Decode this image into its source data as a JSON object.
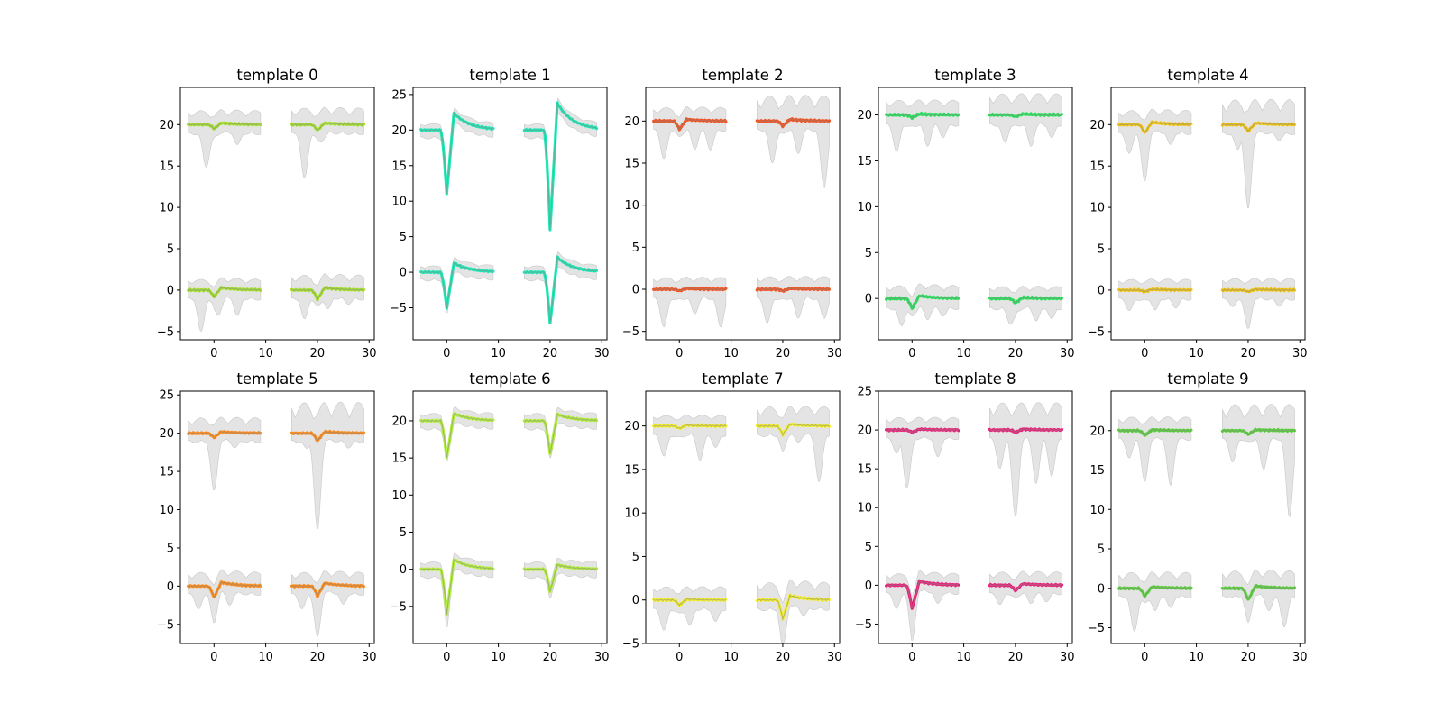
{
  "chart_data": [
    {
      "type": "line",
      "title": "template 0",
      "color": "#a6e22e",
      "ylim": [
        -6,
        24.5
      ],
      "yticks": [
        -5,
        0,
        5,
        10,
        15,
        20
      ],
      "channels": [
        {
          "x_offset": 0,
          "y_offset": 20,
          "amp": -0.5,
          "tail": 0.2,
          "band_top": 1.7,
          "band_dips": [
            [
              -1.5,
              -5.2
            ],
            [
              4.5,
              -2.5
            ]
          ]
        },
        {
          "x_offset": 20,
          "y_offset": 20,
          "amp": -0.7,
          "tail": 0.2,
          "band_top": 2.0,
          "band_dips": [
            [
              -2.5,
              -6.5
            ],
            [
              1,
              -2.0
            ]
          ]
        },
        {
          "x_offset": 0,
          "y_offset": 0,
          "amp": -0.8,
          "tail": 0.3,
          "band_top": 1.3,
          "band_dips": [
            [
              -2.5,
              -5.0
            ],
            [
              1,
              -3.0
            ],
            [
              4.5,
              -3.2
            ]
          ]
        },
        {
          "x_offset": 20,
          "y_offset": 0,
          "amp": -1.1,
          "tail": 0.3,
          "band_top": 1.8,
          "band_dips": [
            [
              -2.5,
              -3.5
            ],
            [
              2,
              -2.5
            ],
            [
              6,
              -1.8
            ]
          ]
        }
      ],
      "xlim": [
        -6.5,
        31
      ],
      "xticks": [
        0,
        10,
        20,
        30
      ]
    },
    {
      "type": "line",
      "title": "template 1",
      "color": "#1de9b6",
      "ylim": [
        -9.5,
        26
      ],
      "yticks": [
        -5,
        0,
        5,
        10,
        15,
        20,
        25
      ],
      "channels": [
        {
          "x_offset": 0,
          "y_offset": 20,
          "amp": -9.0,
          "tail": 2.4,
          "band_top": 0.9,
          "band_dips": [
            [
              0,
              -0.8
            ]
          ]
        },
        {
          "x_offset": 20,
          "y_offset": 20,
          "amp": -14.0,
          "tail": 3.8,
          "band_top": 0.9,
          "band_dips": [
            [
              0,
              -0.8
            ]
          ]
        },
        {
          "x_offset": 0,
          "y_offset": 0,
          "amp": -5.0,
          "tail": 1.3,
          "band_top": 0.9,
          "band_dips": [
            [
              0,
              -1.3
            ]
          ]
        },
        {
          "x_offset": 20,
          "y_offset": 0,
          "amp": -7.2,
          "tail": 2.1,
          "band_top": 0.9,
          "band_dips": [
            [
              0,
              -1.0
            ]
          ]
        }
      ],
      "xlim": [
        -6.5,
        31
      ],
      "xticks": [
        0,
        10,
        20,
        30
      ]
    },
    {
      "type": "line",
      "title": "template 2",
      "color": "#f4511e",
      "ylim": [
        -6,
        24
      ],
      "yticks": [
        -5,
        0,
        5,
        10,
        15,
        20
      ],
      "channels": [
        {
          "x_offset": 0,
          "y_offset": 20,
          "amp": -1.0,
          "tail": 0.2,
          "band_top": 1.6,
          "band_dips": [
            [
              -3,
              -4.5
            ],
            [
              3,
              -3.5
            ],
            [
              6,
              -3.5
            ]
          ]
        },
        {
          "x_offset": 20,
          "y_offset": 20,
          "amp": -0.6,
          "tail": 0.2,
          "band_top": 3.0,
          "band_dips": [
            [
              -2,
              -5.0
            ],
            [
              3,
              -4.0
            ],
            [
              8,
              -8.0
            ]
          ]
        },
        {
          "x_offset": 0,
          "y_offset": 0,
          "amp": -0.2,
          "tail": 0.1,
          "band_top": 1.4,
          "band_dips": [
            [
              -3,
              -4.5
            ],
            [
              3,
              -3.0
            ],
            [
              8,
              -4.5
            ]
          ]
        },
        {
          "x_offset": 20,
          "y_offset": 0,
          "amp": -0.2,
          "tail": 0.1,
          "band_top": 1.5,
          "band_dips": [
            [
              -3,
              -4.0
            ],
            [
              3,
              -3.5
            ],
            [
              8,
              -3.5
            ]
          ]
        }
      ],
      "xlim": [
        -6.5,
        31
      ],
      "xticks": [
        0,
        10,
        20,
        30
      ]
    },
    {
      "type": "line",
      "title": "template 3",
      "color": "#26e35a",
      "ylim": [
        -4.5,
        23
      ],
      "yticks": [
        0,
        5,
        10,
        15,
        20
      ],
      "channels": [
        {
          "x_offset": 0,
          "y_offset": 20,
          "amp": -0.3,
          "tail": 0.1,
          "band_top": 1.6,
          "band_dips": [
            [
              -3,
              -4.0
            ],
            [
              3,
              -3.5
            ],
            [
              6,
              -2.5
            ]
          ]
        },
        {
          "x_offset": 20,
          "y_offset": 20,
          "amp": -0.2,
          "tail": 0.1,
          "band_top": 2.3,
          "band_dips": [
            [
              -2,
              -3.0
            ],
            [
              3,
              -3.5
            ],
            [
              7,
              -2.5
            ]
          ]
        },
        {
          "x_offset": 0,
          "y_offset": 0,
          "amp": -1.1,
          "tail": 0.3,
          "band_top": 1.4,
          "band_dips": [
            [
              -2,
              -3.0
            ],
            [
              3,
              -2.5
            ],
            [
              6,
              -2.0
            ]
          ]
        },
        {
          "x_offset": 20,
          "y_offset": 0,
          "amp": -0.5,
          "tail": 0.1,
          "band_top": 1.3,
          "band_dips": [
            [
              -1,
              -2.8
            ],
            [
              4,
              -2.5
            ],
            [
              7,
              -2.2
            ]
          ]
        }
      ],
      "xlim": [
        -6.5,
        31
      ],
      "xticks": [
        0,
        10,
        20,
        30
      ]
    },
    {
      "type": "line",
      "title": "template 4",
      "color": "#f2c611",
      "ylim": [
        -6,
        24.5
      ],
      "yticks": [
        -5,
        0,
        5,
        10,
        15,
        20
      ],
      "channels": [
        {
          "x_offset": 0,
          "y_offset": 20,
          "amp": -1.0,
          "tail": 0.3,
          "band_top": 1.7,
          "band_dips": [
            [
              -3,
              -3.5
            ],
            [
              0,
              -6.0
            ],
            [
              5,
              -2.5
            ]
          ]
        },
        {
          "x_offset": 20,
          "y_offset": 20,
          "amp": -0.8,
          "tail": 0.2,
          "band_top": 3.0,
          "band_dips": [
            [
              -2,
              -3.0
            ],
            [
              0,
              -9.5
            ],
            [
              6,
              -2.0
            ]
          ]
        },
        {
          "x_offset": 0,
          "y_offset": 0,
          "amp": -0.2,
          "tail": 0.1,
          "band_top": 1.3,
          "band_dips": [
            [
              -3,
              -2.5
            ],
            [
              2,
              -2.5
            ],
            [
              6,
              -2.2
            ]
          ]
        },
        {
          "x_offset": 20,
          "y_offset": 0,
          "amp": -0.2,
          "tail": 0.1,
          "band_top": 1.4,
          "band_dips": [
            [
              -3,
              -2.0
            ],
            [
              0,
              -4.5
            ],
            [
              6,
              -2.0
            ]
          ]
        }
      ],
      "xlim": [
        -6.5,
        31
      ],
      "xticks": [
        0,
        10,
        20,
        30
      ]
    },
    {
      "type": "line",
      "title": "template 5",
      "color": "#ff8c1a",
      "ylim": [
        -7.5,
        25.5
      ],
      "yticks": [
        -5,
        0,
        5,
        10,
        15,
        20,
        25
      ],
      "channels": [
        {
          "x_offset": 0,
          "y_offset": 20,
          "amp": -0.6,
          "tail": 0.2,
          "band_top": 2.0,
          "band_dips": [
            [
              0,
              -7.0
            ],
            [
              4,
              -2.0
            ]
          ]
        },
        {
          "x_offset": 20,
          "y_offset": 20,
          "amp": -1.0,
          "tail": 0.2,
          "band_top": 4.0,
          "band_dips": [
            [
              -2,
              -2.0
            ],
            [
              0,
              -11.8
            ],
            [
              6,
              -2.0
            ]
          ]
        },
        {
          "x_offset": 0,
          "y_offset": 0,
          "amp": -1.5,
          "tail": 0.5,
          "band_top": 1.8,
          "band_dips": [
            [
              -3,
              -3.0
            ],
            [
              0,
              -3.5
            ],
            [
              3,
              -2.8
            ]
          ]
        },
        {
          "x_offset": 20,
          "y_offset": 0,
          "amp": -1.3,
          "tail": 0.4,
          "band_top": 1.8,
          "band_dips": [
            [
              -3,
              -3.0
            ],
            [
              0,
              -5.5
            ],
            [
              5,
              -2.5
            ]
          ]
        }
      ],
      "xlim": [
        -6.5,
        31
      ],
      "xticks": [
        0,
        10,
        20,
        30
      ]
    },
    {
      "type": "line",
      "title": "template 6",
      "color": "#b4f03c",
      "ylim": [
        -10,
        24
      ],
      "yticks": [
        -5,
        0,
        5,
        10,
        15,
        20
      ],
      "channels": [
        {
          "x_offset": 0,
          "y_offset": 20,
          "amp": -5.0,
          "tail": 1.0,
          "band_top": 1.0,
          "band_dips": [
            [
              0,
              -1.0
            ]
          ]
        },
        {
          "x_offset": 20,
          "y_offset": 20,
          "amp": -4.5,
          "tail": 0.9,
          "band_top": 1.0,
          "band_dips": [
            [
              0,
              -1.0
            ]
          ]
        },
        {
          "x_offset": 0,
          "y_offset": 0,
          "amp": -6.0,
          "tail": 1.3,
          "band_top": 1.0,
          "band_dips": [
            [
              0,
              -2.5
            ]
          ]
        },
        {
          "x_offset": 20,
          "y_offset": 0,
          "amp": -3.0,
          "tail": 0.6,
          "band_top": 1.0,
          "band_dips": [
            [
              0,
              -1.2
            ]
          ]
        }
      ],
      "xlim": [
        -6.5,
        31
      ],
      "xticks": [
        0,
        10,
        20,
        30
      ]
    },
    {
      "type": "line",
      "title": "template 7",
      "color": "#f3f02a",
      "ylim": [
        -5,
        24
      ],
      "yticks": [
        -5,
        0,
        5,
        10,
        15,
        20
      ],
      "channels": [
        {
          "x_offset": 0,
          "y_offset": 20,
          "amp": -0.3,
          "tail": 0.1,
          "band_top": 1.2,
          "band_dips": [
            [
              -3,
              -3.5
            ],
            [
              4,
              -4.0
            ],
            [
              7,
              -2.5
            ]
          ]
        },
        {
          "x_offset": 20,
          "y_offset": 20,
          "amp": -1.0,
          "tail": 0.2,
          "band_top": 2.2,
          "band_dips": [
            [
              0,
              -2.0
            ],
            [
              3,
              -2.0
            ],
            [
              7,
              -6.5
            ]
          ]
        },
        {
          "x_offset": 0,
          "y_offset": 0,
          "amp": -0.6,
          "tail": 0.1,
          "band_top": 1.5,
          "band_dips": [
            [
              -3,
              -3.5
            ],
            [
              2,
              -3.0
            ],
            [
              7,
              -2.5
            ]
          ]
        },
        {
          "x_offset": 20,
          "y_offset": 0,
          "amp": -2.2,
          "tail": 0.5,
          "band_top": 2.0,
          "band_dips": [
            [
              0,
              -3.5
            ],
            [
              4,
              -2.0
            ]
          ]
        }
      ],
      "xlim": [
        -6.5,
        31
      ],
      "xticks": [
        0,
        10,
        20,
        30
      ]
    },
    {
      "type": "line",
      "title": "template 8",
      "color": "#e91e78",
      "ylim": [
        -7.5,
        25
      ],
      "yticks": [
        -5,
        0,
        5,
        10,
        15,
        20,
        25
      ],
      "channels": [
        {
          "x_offset": 0,
          "y_offset": 20,
          "amp": -0.3,
          "tail": 0.1,
          "band_top": 1.6,
          "band_dips": [
            [
              -3,
              -3.0
            ],
            [
              -1,
              -7.5
            ],
            [
              5,
              -3.5
            ]
          ]
        },
        {
          "x_offset": 20,
          "y_offset": 20,
          "amp": -0.3,
          "tail": 0.1,
          "band_top": 3.5,
          "band_dips": [
            [
              -3,
              -5.0
            ],
            [
              0,
              -11.0
            ],
            [
              4,
              -7.0
            ],
            [
              7,
              -6.0
            ]
          ]
        },
        {
          "x_offset": 0,
          "y_offset": 0,
          "amp": -3.0,
          "tail": 0.5,
          "band_top": 1.5,
          "band_dips": [
            [
              -3,
              -3.0
            ],
            [
              0,
              -4.5
            ],
            [
              5,
              -2.5
            ]
          ]
        },
        {
          "x_offset": 20,
          "y_offset": 0,
          "amp": -0.7,
          "tail": 0.2,
          "band_top": 1.7,
          "band_dips": [
            [
              -3,
              -2.5
            ],
            [
              3,
              -2.5
            ],
            [
              6,
              -2.2
            ]
          ]
        }
      ],
      "xlim": [
        -6.5,
        31
      ],
      "xticks": [
        0,
        10,
        20,
        30
      ]
    },
    {
      "type": "line",
      "title": "template 9",
      "color": "#5ad13c",
      "ylim": [
        -7,
        25
      ],
      "yticks": [
        -5,
        0,
        5,
        10,
        15,
        20
      ],
      "channels": [
        {
          "x_offset": 0,
          "y_offset": 20,
          "amp": -0.6,
          "tail": 0.1,
          "band_top": 1.7,
          "band_dips": [
            [
              -3,
              -3.5
            ],
            [
              0,
              -6.0
            ],
            [
              5,
              -7.0
            ]
          ]
        },
        {
          "x_offset": 20,
          "y_offset": 20,
          "amp": -0.5,
          "tail": 0.1,
          "band_top": 3.3,
          "band_dips": [
            [
              -3,
              -4.0
            ],
            [
              3,
              -5.0
            ],
            [
              8,
              -11.0
            ]
          ]
        },
        {
          "x_offset": 0,
          "y_offset": 0,
          "amp": -1.0,
          "tail": 0.2,
          "band_top": 2.0,
          "band_dips": [
            [
              -2,
              -5.5
            ],
            [
              2,
              -3.0
            ],
            [
              5,
              -2.5
            ]
          ]
        },
        {
          "x_offset": 20,
          "y_offset": 0,
          "amp": -1.5,
          "tail": 0.3,
          "band_top": 2.2,
          "band_dips": [
            [
              0,
              -3.0
            ],
            [
              4,
              -3.0
            ],
            [
              7,
              -5.0
            ]
          ]
        }
      ],
      "xlim": [
        -6.5,
        31
      ],
      "xticks": [
        0,
        10,
        20,
        30
      ]
    }
  ]
}
